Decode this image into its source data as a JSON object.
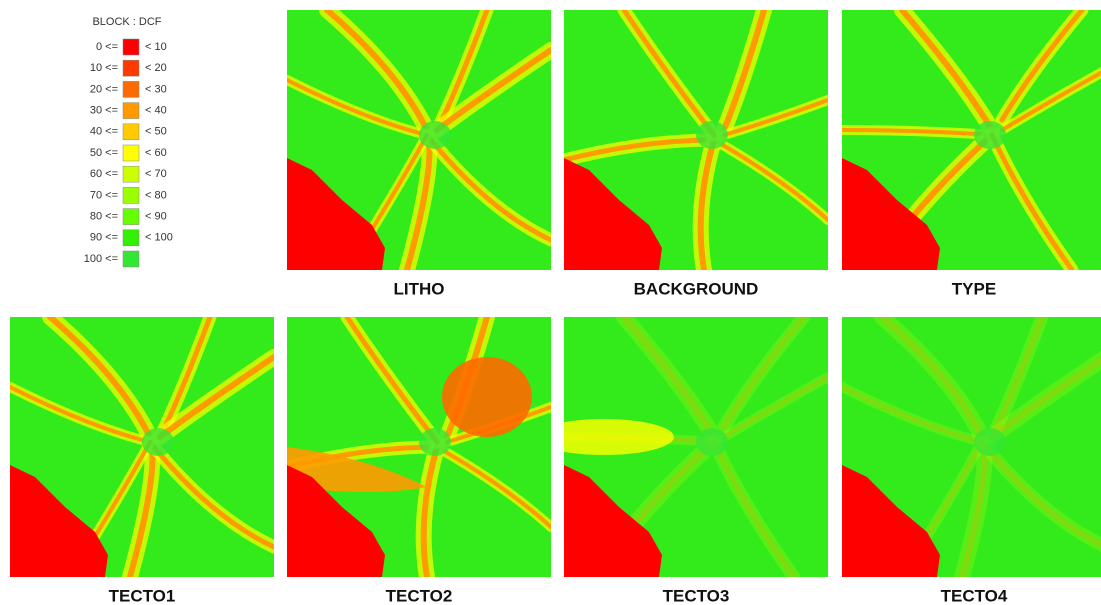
{
  "legend": {
    "title": "BLOCK : DCF",
    "entries": [
      {
        "from": "0 <=",
        "to": "< 10",
        "color": "#ff0000"
      },
      {
        "from": "10 <=",
        "to": "< 20",
        "color": "#ff3a00"
      },
      {
        "from": "20 <=",
        "to": "< 30",
        "color": "#ff6a00"
      },
      {
        "from": "30 <=",
        "to": "< 40",
        "color": "#ff9a00"
      },
      {
        "from": "40 <=",
        "to": "< 50",
        "color": "#ffcb00"
      },
      {
        "from": "50 <=",
        "to": "< 60",
        "color": "#ffff00"
      },
      {
        "from": "60 <=",
        "to": "< 70",
        "color": "#ccff00"
      },
      {
        "from": "70 <=",
        "to": "< 80",
        "color": "#9aff00"
      },
      {
        "from": "80 <=",
        "to": "< 90",
        "color": "#66ff00"
      },
      {
        "from": "90 <=",
        "to": "< 100",
        "color": "#33f000"
      },
      {
        "from": "100 <=",
        "color": "#33e633"
      }
    ]
  },
  "panels": [
    "LITHO",
    "BACKGROUND",
    "TYPE",
    "TECTO1",
    "TECTO2",
    "TECTO3",
    "TECTO4"
  ]
}
